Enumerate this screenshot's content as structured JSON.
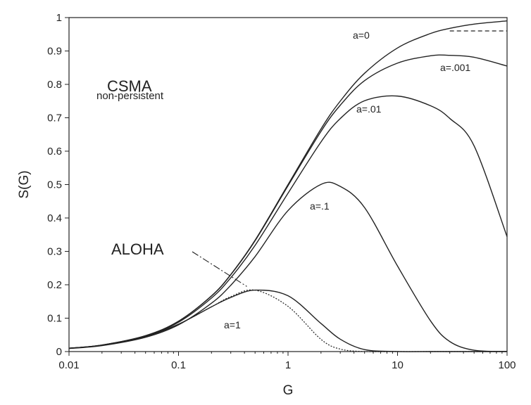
{
  "chart_data": {
    "type": "line",
    "x_scale": "log",
    "xlim": [
      0.01,
      100
    ],
    "ylim": [
      0,
      1
    ],
    "xlabel": "G",
    "ylabel": "S(G)",
    "x_ticks": [
      "0.01",
      "0.1",
      "1",
      "10",
      "100"
    ],
    "y_ticks": [
      "0",
      "0.1",
      "0.2",
      "0.3",
      "0.4",
      "0.5",
      "0.6",
      "0.7",
      "0.8",
      "0.9",
      "1"
    ],
    "grid": false,
    "annotations": {
      "csma": "CSMA",
      "non_persistent": "non-persistent",
      "aloha": "ALOHA",
      "a0": "a=0",
      "a001": "a=.001",
      "a01": "a=.01",
      "a1": "a=.1",
      "a_one": "a=1"
    },
    "x": [
      0.01,
      0.02,
      0.05,
      0.1,
      0.2,
      0.3,
      0.5,
      1,
      2,
      3,
      5,
      10,
      20,
      30,
      50,
      100
    ],
    "series": [
      {
        "name": "a=0",
        "style": "solid",
        "values": [
          0.0099,
          0.0196,
          0.0476,
          0.0909,
          0.1667,
          0.2308,
          0.3333,
          0.5,
          0.6667,
          0.75,
          0.8333,
          0.9091,
          0.9524,
          0.9677,
          0.9804,
          0.9901
        ]
      },
      {
        "name": "a=.001",
        "style": "solid",
        "values": [
          0.0099,
          0.0196,
          0.0476,
          0.0908,
          0.1663,
          0.23,
          0.3318,
          0.4966,
          0.6593,
          0.7376,
          0.8112,
          0.8637,
          0.8856,
          0.887,
          0.8812,
          0.855
        ]
      },
      {
        "name": "a=.01",
        "style": "solid",
        "values": [
          0.0098,
          0.0192,
          0.0464,
          0.0878,
          0.1603,
          0.2209,
          0.3179,
          0.4742,
          0.6277,
          0.6977,
          0.751,
          0.765,
          0.736,
          0.698,
          0.616,
          0.344
        ]
      },
      {
        "name": "a=.1",
        "style": "solid",
        "values": [
          0.0091,
          0.0178,
          0.0428,
          0.08,
          0.1448,
          0.1985,
          0.2844,
          0.4223,
          0.5006,
          0.4944,
          0.4311,
          0.256,
          0.092,
          0.03,
          0.004,
          0.0003
        ]
      },
      {
        "name": "a=1",
        "style": "solid",
        "values": [
          0.0099,
          0.0192,
          0.0453,
          0.082,
          0.134,
          0.162,
          0.184,
          0.167,
          0.084,
          0.037,
          0.006,
          0.0001,
          0,
          0,
          0,
          0
        ]
      },
      {
        "name": "ALOHA",
        "style": "dotted",
        "values": [
          0.0098,
          0.0192,
          0.0452,
          0.0819,
          0.1341,
          0.1646,
          0.1839,
          0.1353,
          0.0366,
          0.0074,
          0.0002,
          0,
          0,
          0,
          0,
          0
        ]
      }
    ]
  }
}
